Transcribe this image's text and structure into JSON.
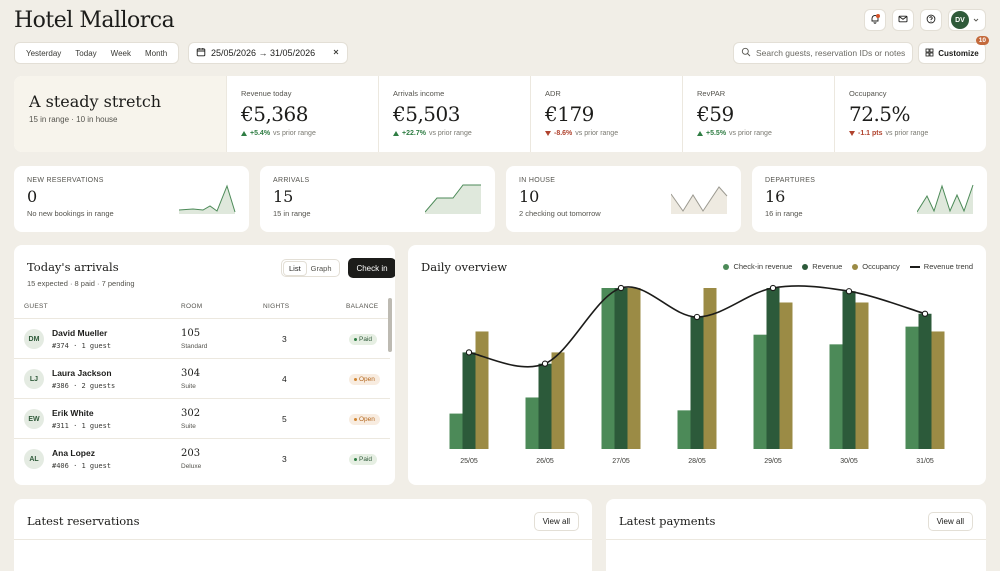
{
  "app": {
    "title": "Hotel Mallorca"
  },
  "header": {
    "period_tabs": [
      "Yesterday",
      "Today",
      "Week",
      "Month"
    ],
    "date_range": "25/05/2026 → 31/05/2026",
    "search_placeholder": "Search guests, reservation IDs or notes",
    "customize_label": "Customize",
    "customize_badge": "10",
    "avatar_initials": "DV"
  },
  "hero": {
    "title": "A steady stretch",
    "subtitle": "15 in range · 10 in house"
  },
  "kpis": [
    {
      "label": "Revenue today",
      "value": "€5,368",
      "delta": "+5.4%",
      "dir": "up",
      "note": "vs prior range"
    },
    {
      "label": "Arrivals income",
      "value": "€5,503",
      "delta": "+22.7%",
      "dir": "up",
      "note": "vs prior range"
    },
    {
      "label": "ADR",
      "value": "€179",
      "delta": "-8.6%",
      "dir": "down",
      "note": "vs prior range"
    },
    {
      "label": "RevPAR",
      "value": "€59",
      "delta": "+5.5%",
      "dir": "up",
      "note": "vs prior range"
    },
    {
      "label": "Occupancy",
      "value": "72.5%",
      "delta": "-1.1 pts",
      "dir": "down",
      "note": "vs prior range"
    }
  ],
  "mini_cards": [
    {
      "label": "New reservations",
      "value": "0",
      "sub": "No new bookings in range"
    },
    {
      "label": "Arrivals",
      "value": "15",
      "sub": "15 in range"
    },
    {
      "label": "In house",
      "value": "10",
      "sub": "2 checking out tomorrow"
    },
    {
      "label": "Departures",
      "value": "16",
      "sub": "16 in range"
    }
  ],
  "arrivals": {
    "title": "Today's arrivals",
    "subtitle": "15 expected · 8 paid · 7 pending",
    "toggle": [
      "List",
      "Graph"
    ],
    "checkin_label": "Check in",
    "columns": [
      "GUEST",
      "ROOM",
      "NIGHTS",
      "BALANCE"
    ],
    "rows": [
      {
        "initials": "DM",
        "name": "David Mueller",
        "ref": "#374 · 1 guest",
        "room": "105",
        "room_type": "Standard",
        "nights": "3",
        "balance": "Paid",
        "status": "paid"
      },
      {
        "initials": "LJ",
        "name": "Laura Jackson",
        "ref": "#386 · 2 guests",
        "room": "304",
        "room_type": "Suite",
        "nights": "4",
        "balance": "Open",
        "status": "open"
      },
      {
        "initials": "EW",
        "name": "Erik White",
        "ref": "#311 · 1 guest",
        "room": "302",
        "room_type": "Suite",
        "nights": "5",
        "balance": "Open",
        "status": "open"
      },
      {
        "initials": "AL",
        "name": "Ana Lopez",
        "ref": "#406 · 1 guest",
        "room": "203",
        "room_type": "Deluxe",
        "nights": "3",
        "balance": "Paid",
        "status": "paid"
      }
    ]
  },
  "overview": {
    "title": "Daily overview",
    "legend": [
      "Check-in revenue",
      "Revenue",
      "Occupancy",
      "Revenue trend"
    ]
  },
  "chart_data": {
    "type": "bar",
    "categories": [
      "25/05",
      "26/05",
      "27/05",
      "28/05",
      "29/05",
      "30/05",
      "31/05"
    ],
    "ylim": [
      0,
      100
    ],
    "series": [
      {
        "name": "Check-in revenue",
        "color": "#4c8a58",
        "values": [
          22,
          32,
          100,
          24,
          71,
          65,
          76
        ]
      },
      {
        "name": "Revenue",
        "color": "#2c5a3a",
        "values": [
          60,
          53,
          100,
          82,
          100,
          98,
          84
        ]
      },
      {
        "name": "Occupancy",
        "color": "#9b8b45",
        "values": [
          73,
          60,
          100,
          100,
          91,
          91,
          73
        ]
      },
      {
        "name": "Revenue trend",
        "color": "#1c1c1a",
        "values": [
          60,
          53,
          100,
          82,
          100,
          98,
          84
        ]
      }
    ],
    "grid": false,
    "legend_position": "top-right"
  },
  "bottom": {
    "reservations_title": "Latest reservations",
    "payments_title": "Latest payments",
    "view_all": "View all"
  }
}
